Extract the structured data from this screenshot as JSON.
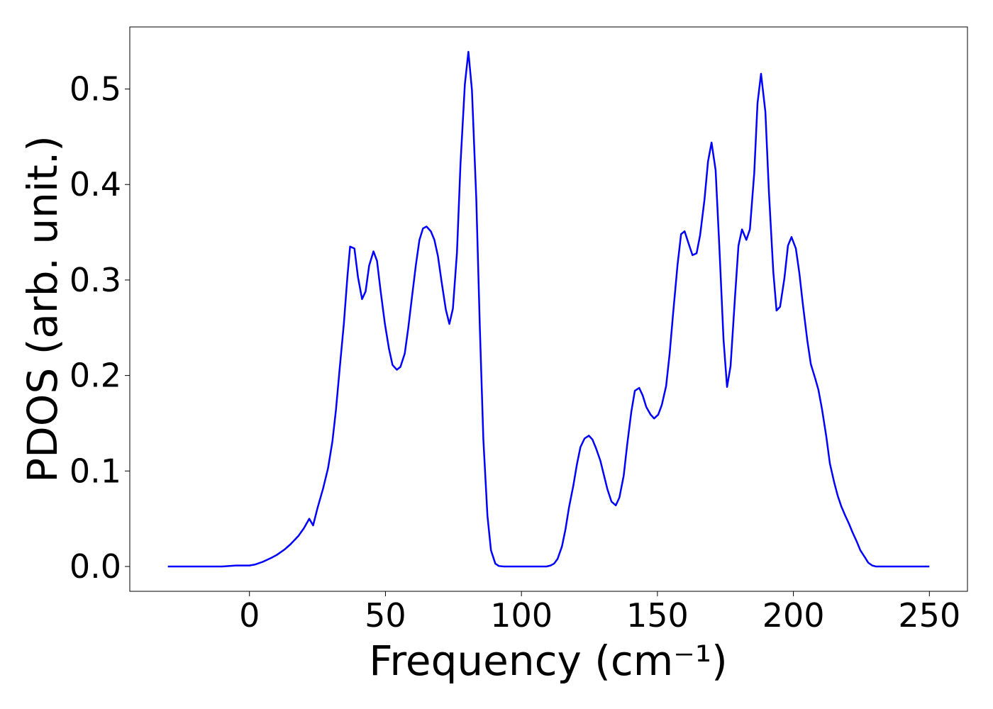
{
  "chart_data": {
    "type": "line",
    "xlabel": "Frequency (cm⁻¹)",
    "ylabel": "PDOS (arb. unit.)",
    "xlim": [
      -44,
      264
    ],
    "ylim": [
      -0.026,
      0.565
    ],
    "xticks": [
      0,
      50,
      100,
      150,
      200,
      250
    ],
    "yticks": [
      {
        "value": 0,
        "label": "0.0"
      },
      0.1,
      0.2,
      0.3,
      0.4,
      0.5
    ],
    "grid": false,
    "series": [
      {
        "color": "#0000ff",
        "x": [
          -30,
          -20,
          -10,
          -5,
          0,
          2,
          5,
          8,
          10,
          13,
          15,
          18,
          20,
          22,
          23.4,
          25,
          27.1,
          28.9,
          30.5,
          31.8,
          33.1,
          34.7,
          36.0,
          37.0,
          38.6,
          39.9,
          41.4,
          42.7,
          44.0,
          45.6,
          46.9,
          48.2,
          49.8,
          51.3,
          52.6,
          54.2,
          55.5,
          57.1,
          58.4,
          59.7,
          61.2,
          62.5,
          63.8,
          65.1,
          66.7,
          68.0,
          69.3,
          70.6,
          72.2,
          73.5,
          74.8,
          76.3,
          77.6,
          79.2,
          80.5,
          81.8,
          83.4,
          84.7,
          86.0,
          87.5,
          88.8,
          90.4,
          91.7,
          93.5,
          109.2,
          110.7,
          112,
          113.3,
          114.9,
          116.2,
          117.5,
          119.1,
          120.4,
          121.7,
          123.2,
          124.8,
          126.1,
          127.4,
          129,
          130.3,
          131.6,
          133.1,
          134.7,
          136,
          137.6,
          138.9,
          140.4,
          141.7,
          143.3,
          144.6,
          145.9,
          147.5,
          148.8,
          150.3,
          151.6,
          153.2,
          154.5,
          155.8,
          157.4,
          158.7,
          160,
          161.6,
          162.9,
          164.4,
          165.7,
          167.3,
          168.6,
          169.9,
          171.4,
          172.8,
          174.3,
          175.6,
          176.9,
          178.5,
          179.8,
          181.1,
          182.7,
          184,
          185.6,
          186.8,
          188.1,
          189.7,
          191,
          192.6,
          193.8,
          195.1,
          196.7,
          198,
          199.3,
          200.9,
          202.2,
          203.5,
          205.1,
          206.4,
          208,
          209.2,
          210.5,
          212.1,
          213.4,
          215,
          216.3,
          217.6,
          219.1,
          220.4,
          221.7,
          223.3,
          224.6,
          226.2,
          227.5,
          229,
          230.3,
          250
        ],
        "values": [
          0,
          0,
          0,
          0.001,
          0.001,
          0.002,
          0.005,
          0.009,
          0.012,
          0.018,
          0.023,
          0.032,
          0.04,
          0.05,
          0.043,
          0.061,
          0.082,
          0.103,
          0.131,
          0.164,
          0.205,
          0.254,
          0.303,
          0.335,
          0.333,
          0.303,
          0.28,
          0.288,
          0.315,
          0.33,
          0.32,
          0.289,
          0.254,
          0.228,
          0.211,
          0.206,
          0.209,
          0.223,
          0.25,
          0.281,
          0.316,
          0.342,
          0.354,
          0.356,
          0.351,
          0.342,
          0.325,
          0.299,
          0.269,
          0.254,
          0.27,
          0.329,
          0.422,
          0.505,
          0.539,
          0.499,
          0.385,
          0.251,
          0.133,
          0.053,
          0.017,
          0.003,
          0.0005,
          0,
          0,
          0.001,
          0.003,
          0.008,
          0.021,
          0.039,
          0.062,
          0.085,
          0.107,
          0.125,
          0.134,
          0.137,
          0.133,
          0.124,
          0.111,
          0.096,
          0.081,
          0.068,
          0.064,
          0.072,
          0.095,
          0.128,
          0.162,
          0.184,
          0.187,
          0.179,
          0.167,
          0.159,
          0.155,
          0.159,
          0.169,
          0.189,
          0.223,
          0.266,
          0.316,
          0.348,
          0.351,
          0.337,
          0.326,
          0.328,
          0.347,
          0.384,
          0.424,
          0.444,
          0.415,
          0.333,
          0.238,
          0.188,
          0.21,
          0.281,
          0.336,
          0.353,
          0.342,
          0.353,
          0.412,
          0.485,
          0.516,
          0.476,
          0.392,
          0.309,
          0.268,
          0.272,
          0.302,
          0.336,
          0.345,
          0.333,
          0.307,
          0.274,
          0.237,
          0.212,
          0.197,
          0.185,
          0.165,
          0.136,
          0.108,
          0.088,
          0.074,
          0.063,
          0.053,
          0.045,
          0.036,
          0.026,
          0.017,
          0.01,
          0.004,
          0.001,
          0,
          0
        ]
      }
    ]
  }
}
